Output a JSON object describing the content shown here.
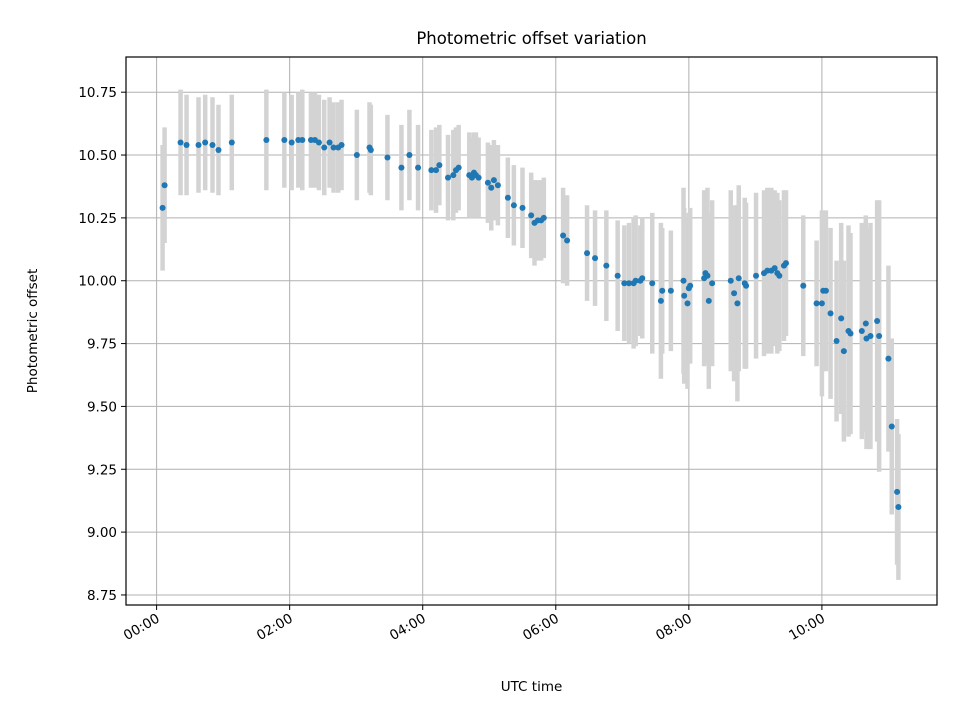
{
  "chart_data": {
    "type": "scatter",
    "title": "Photometric offset variation",
    "xlabel": "UTC time",
    "ylabel": "Photometric offset",
    "x_unit": "hours UTC",
    "xlim": [
      -0.46,
      11.73
    ],
    "ylim": [
      8.71,
      10.89
    ],
    "x_ticks": [
      0,
      2,
      4,
      6,
      8,
      10
    ],
    "x_tick_labels": [
      "00:00",
      "02:00",
      "04:00",
      "06:00",
      "08:00",
      "10:00"
    ],
    "y_ticks": [
      8.75,
      9.0,
      9.25,
      9.5,
      9.75,
      10.0,
      10.25,
      10.5,
      10.75
    ],
    "y_tick_labels": [
      "8.75",
      "9.00",
      "9.25",
      "9.50",
      "9.75",
      "10.00",
      "10.25",
      "10.50",
      "10.75"
    ],
    "grid": true,
    "point_color": "#1f77b4",
    "errorbar_color": "#d3d3d3",
    "points": [
      {
        "x": 0.09,
        "y": 10.29,
        "err": 0.25
      },
      {
        "x": 0.12,
        "y": 10.38,
        "err": 0.23
      },
      {
        "x": 0.36,
        "y": 10.55,
        "err": 0.21
      },
      {
        "x": 0.45,
        "y": 10.54,
        "err": 0.2
      },
      {
        "x": 0.63,
        "y": 10.54,
        "err": 0.19
      },
      {
        "x": 0.73,
        "y": 10.55,
        "err": 0.19
      },
      {
        "x": 0.84,
        "y": 10.54,
        "err": 0.19
      },
      {
        "x": 0.93,
        "y": 10.52,
        "err": 0.18
      },
      {
        "x": 1.13,
        "y": 10.55,
        "err": 0.19
      },
      {
        "x": 1.65,
        "y": 10.56,
        "err": 0.2
      },
      {
        "x": 1.92,
        "y": 10.56,
        "err": 0.19
      },
      {
        "x": 2.03,
        "y": 10.55,
        "err": 0.19
      },
      {
        "x": 2.13,
        "y": 10.56,
        "err": 0.19
      },
      {
        "x": 2.19,
        "y": 10.56,
        "err": 0.2
      },
      {
        "x": 2.32,
        "y": 10.56,
        "err": 0.19
      },
      {
        "x": 2.38,
        "y": 10.56,
        "err": 0.19
      },
      {
        "x": 2.44,
        "y": 10.55,
        "err": 0.19
      },
      {
        "x": 2.52,
        "y": 10.53,
        "err": 0.19
      },
      {
        "x": 2.6,
        "y": 10.55,
        "err": 0.18
      },
      {
        "x": 2.66,
        "y": 10.53,
        "err": 0.18
      },
      {
        "x": 2.73,
        "y": 10.53,
        "err": 0.18
      },
      {
        "x": 2.78,
        "y": 10.54,
        "err": 0.18
      },
      {
        "x": 3.01,
        "y": 10.5,
        "err": 0.18
      },
      {
        "x": 3.2,
        "y": 10.53,
        "err": 0.18
      },
      {
        "x": 3.22,
        "y": 10.52,
        "err": 0.18
      },
      {
        "x": 3.47,
        "y": 10.49,
        "err": 0.17
      },
      {
        "x": 3.68,
        "y": 10.45,
        "err": 0.17
      },
      {
        "x": 3.8,
        "y": 10.5,
        "err": 0.18
      },
      {
        "x": 3.93,
        "y": 10.45,
        "err": 0.17
      },
      {
        "x": 4.13,
        "y": 10.44,
        "err": 0.16
      },
      {
        "x": 4.2,
        "y": 10.44,
        "err": 0.17
      },
      {
        "x": 4.25,
        "y": 10.46,
        "err": 0.16
      },
      {
        "x": 4.38,
        "y": 10.41,
        "err": 0.17
      },
      {
        "x": 4.46,
        "y": 10.42,
        "err": 0.18
      },
      {
        "x": 4.5,
        "y": 10.44,
        "err": 0.17
      },
      {
        "x": 4.54,
        "y": 10.45,
        "err": 0.17
      },
      {
        "x": 4.7,
        "y": 10.42,
        "err": 0.17
      },
      {
        "x": 4.74,
        "y": 10.41,
        "err": 0.16
      },
      {
        "x": 4.77,
        "y": 10.43,
        "err": 0.16
      },
      {
        "x": 4.8,
        "y": 10.42,
        "err": 0.17
      },
      {
        "x": 4.84,
        "y": 10.41,
        "err": 0.16
      },
      {
        "x": 4.98,
        "y": 10.39,
        "err": 0.16
      },
      {
        "x": 5.03,
        "y": 10.37,
        "err": 0.17
      },
      {
        "x": 5.07,
        "y": 10.4,
        "err": 0.16
      },
      {
        "x": 5.13,
        "y": 10.38,
        "err": 0.16
      },
      {
        "x": 5.28,
        "y": 10.33,
        "err": 0.16
      },
      {
        "x": 5.37,
        "y": 10.3,
        "err": 0.16
      },
      {
        "x": 5.5,
        "y": 10.29,
        "err": 0.16
      },
      {
        "x": 5.63,
        "y": 10.26,
        "err": 0.17
      },
      {
        "x": 5.68,
        "y": 10.23,
        "err": 0.17
      },
      {
        "x": 5.73,
        "y": 10.24,
        "err": 0.16
      },
      {
        "x": 5.78,
        "y": 10.24,
        "err": 0.16
      },
      {
        "x": 5.82,
        "y": 10.25,
        "err": 0.16
      },
      {
        "x": 6.11,
        "y": 10.18,
        "err": 0.19
      },
      {
        "x": 6.17,
        "y": 10.16,
        "err": 0.18
      },
      {
        "x": 6.47,
        "y": 10.11,
        "err": 0.19
      },
      {
        "x": 6.59,
        "y": 10.09,
        "err": 0.19
      },
      {
        "x": 6.76,
        "y": 10.06,
        "err": 0.22
      },
      {
        "x": 6.93,
        "y": 10.02,
        "err": 0.22
      },
      {
        "x": 7.03,
        "y": 9.99,
        "err": 0.23
      },
      {
        "x": 7.1,
        "y": 9.99,
        "err": 0.24
      },
      {
        "x": 7.17,
        "y": 9.99,
        "err": 0.26
      },
      {
        "x": 7.2,
        "y": 10.0,
        "err": 0.26
      },
      {
        "x": 7.27,
        "y": 10.0,
        "err": 0.22
      },
      {
        "x": 7.3,
        "y": 10.01,
        "err": 0.24
      },
      {
        "x": 7.45,
        "y": 9.99,
        "err": 0.28
      },
      {
        "x": 7.58,
        "y": 9.92,
        "err": 0.31
      },
      {
        "x": 7.6,
        "y": 9.96,
        "err": 0.25
      },
      {
        "x": 7.73,
        "y": 9.96,
        "err": 0.24
      },
      {
        "x": 7.92,
        "y": 10.0,
        "err": 0.37
      },
      {
        "x": 7.93,
        "y": 9.94,
        "err": 0.35
      },
      {
        "x": 7.98,
        "y": 9.91,
        "err": 0.34
      },
      {
        "x": 8.0,
        "y": 9.97,
        "err": 0.3
      },
      {
        "x": 8.02,
        "y": 9.98,
        "err": 0.31
      },
      {
        "x": 8.23,
        "y": 10.01,
        "err": 0.35
      },
      {
        "x": 8.25,
        "y": 10.03,
        "err": 0.33
      },
      {
        "x": 8.28,
        "y": 10.02,
        "err": 0.35
      },
      {
        "x": 8.3,
        "y": 9.92,
        "err": 0.35
      },
      {
        "x": 8.35,
        "y": 9.99,
        "err": 0.33
      },
      {
        "x": 8.63,
        "y": 10.0,
        "err": 0.36
      },
      {
        "x": 8.68,
        "y": 9.95,
        "err": 0.35
      },
      {
        "x": 8.73,
        "y": 9.91,
        "err": 0.39
      },
      {
        "x": 8.75,
        "y": 10.01,
        "err": 0.37
      },
      {
        "x": 8.84,
        "y": 9.99,
        "err": 0.34
      },
      {
        "x": 8.86,
        "y": 9.98,
        "err": 0.33
      },
      {
        "x": 9.01,
        "y": 10.02,
        "err": 0.33
      },
      {
        "x": 9.13,
        "y": 10.03,
        "err": 0.33
      },
      {
        "x": 9.18,
        "y": 10.04,
        "err": 0.33
      },
      {
        "x": 9.24,
        "y": 10.04,
        "err": 0.33
      },
      {
        "x": 9.29,
        "y": 10.05,
        "err": 0.31
      },
      {
        "x": 9.33,
        "y": 10.03,
        "err": 0.32
      },
      {
        "x": 9.36,
        "y": 10.02,
        "err": 0.3
      },
      {
        "x": 9.43,
        "y": 10.06,
        "err": 0.3
      },
      {
        "x": 9.46,
        "y": 10.07,
        "err": 0.29
      },
      {
        "x": 9.72,
        "y": 9.98,
        "err": 0.28
      },
      {
        "x": 9.92,
        "y": 9.91,
        "err": 0.25
      },
      {
        "x": 10.0,
        "y": 9.91,
        "err": 0.37
      },
      {
        "x": 10.02,
        "y": 9.96,
        "err": 0.32
      },
      {
        "x": 10.06,
        "y": 9.96,
        "err": 0.32
      },
      {
        "x": 10.13,
        "y": 9.87,
        "err": 0.34
      },
      {
        "x": 10.22,
        "y": 9.76,
        "err": 0.32
      },
      {
        "x": 10.29,
        "y": 9.85,
        "err": 0.38
      },
      {
        "x": 10.33,
        "y": 9.72,
        "err": 0.36
      },
      {
        "x": 10.4,
        "y": 9.8,
        "err": 0.42
      },
      {
        "x": 10.43,
        "y": 9.79,
        "err": 0.4
      },
      {
        "x": 10.6,
        "y": 9.8,
        "err": 0.43
      },
      {
        "x": 10.66,
        "y": 9.83,
        "err": 0.43
      },
      {
        "x": 10.67,
        "y": 9.77,
        "err": 0.44
      },
      {
        "x": 10.73,
        "y": 9.78,
        "err": 0.45
      },
      {
        "x": 10.83,
        "y": 9.84,
        "err": 0.48
      },
      {
        "x": 10.86,
        "y": 9.78,
        "err": 0.54
      },
      {
        "x": 11.0,
        "y": 9.69,
        "err": 0.37
      },
      {
        "x": 11.05,
        "y": 9.42,
        "err": 0.35
      },
      {
        "x": 11.13,
        "y": 9.16,
        "err": 0.29
      },
      {
        "x": 11.15,
        "y": 9.1,
        "err": 0.29
      }
    ]
  }
}
